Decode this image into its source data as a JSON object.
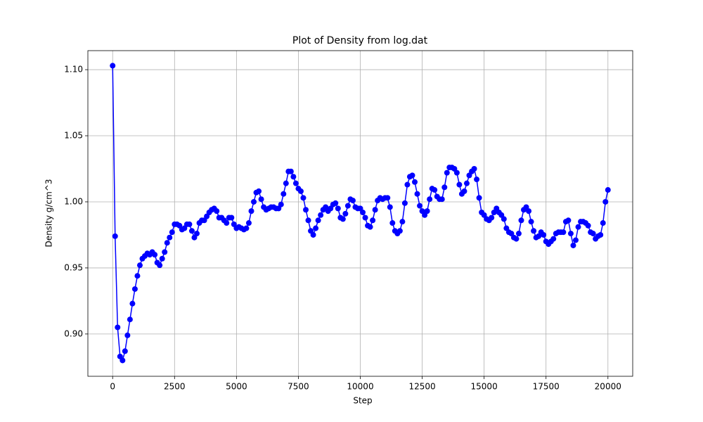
{
  "chart_data": {
    "type": "line",
    "title": "Plot of Density from log.dat",
    "xlabel": "Step",
    "ylabel": "Density g/cm^3",
    "x": [
      0,
      100,
      200,
      300,
      400,
      500,
      600,
      700,
      800,
      900,
      1000,
      1100,
      1200,
      1300,
      1400,
      1500,
      1600,
      1700,
      1800,
      1900,
      2000,
      2100,
      2200,
      2300,
      2400,
      2500,
      2600,
      2700,
      2800,
      2900,
      3000,
      3100,
      3200,
      3300,
      3400,
      3500,
      3600,
      3700,
      3800,
      3900,
      4000,
      4100,
      4200,
      4300,
      4400,
      4500,
      4600,
      4700,
      4800,
      4900,
      5000,
      5100,
      5200,
      5300,
      5400,
      5500,
      5600,
      5700,
      5800,
      5900,
      6000,
      6100,
      6200,
      6300,
      6400,
      6500,
      6600,
      6700,
      6800,
      6900,
      7000,
      7100,
      7200,
      7300,
      7400,
      7500,
      7600,
      7700,
      7800,
      7900,
      8000,
      8100,
      8200,
      8300,
      8400,
      8500,
      8600,
      8700,
      8800,
      8900,
      9000,
      9100,
      9200,
      9300,
      9400,
      9500,
      9600,
      9700,
      9800,
      9900,
      10000,
      10100,
      10200,
      10300,
      10400,
      10500,
      10600,
      10700,
      10800,
      10900,
      11000,
      11100,
      11200,
      11300,
      11400,
      11500,
      11600,
      11700,
      11800,
      11900,
      12000,
      12100,
      12200,
      12300,
      12400,
      12500,
      12600,
      12700,
      12800,
      12900,
      13000,
      13100,
      13200,
      13300,
      13400,
      13500,
      13600,
      13700,
      13800,
      13900,
      14000,
      14100,
      14200,
      14300,
      14400,
      14500,
      14600,
      14700,
      14800,
      14900,
      15000,
      15100,
      15200,
      15300,
      15400,
      15500,
      15600,
      15700,
      15800,
      15900,
      16000,
      16100,
      16200,
      16300,
      16400,
      16500,
      16600,
      16700,
      16800,
      16900,
      17000,
      17100,
      17200,
      17300,
      17400,
      17500,
      17600,
      17700,
      17800,
      17900,
      18000,
      18100,
      18200,
      18300,
      18400,
      18500,
      18600,
      18700,
      18800,
      18900,
      19000,
      19100,
      19200,
      19300,
      19400,
      19500,
      19600,
      19700,
      19800,
      19900,
      20000
    ],
    "series": [
      {
        "color": "#0000ff",
        "values": [
          1.103,
          0.974,
          0.905,
          0.883,
          0.88,
          0.887,
          0.899,
          0.911,
          0.923,
          0.934,
          0.944,
          0.952,
          0.957,
          0.959,
          0.961,
          0.96,
          0.962,
          0.96,
          0.954,
          0.952,
          0.957,
          0.962,
          0.969,
          0.973,
          0.977,
          0.983,
          0.983,
          0.982,
          0.979,
          0.98,
          0.983,
          0.983,
          0.978,
          0.973,
          0.976,
          0.984,
          0.986,
          0.986,
          0.989,
          0.992,
          0.994,
          0.995,
          0.993,
          0.988,
          0.988,
          0.986,
          0.984,
          0.988,
          0.988,
          0.983,
          0.98,
          0.981,
          0.98,
          0.979,
          0.98,
          0.984,
          0.993,
          1.0,
          1.007,
          1.008,
          1.002,
          0.996,
          0.994,
          0.995,
          0.996,
          0.996,
          0.995,
          0.995,
          0.998,
          1.006,
          1.014,
          1.023,
          1.023,
          1.019,
          1.014,
          1.01,
          1.008,
          1.003,
          0.994,
          0.986,
          0.978,
          0.975,
          0.98,
          0.986,
          0.99,
          0.994,
          0.996,
          0.993,
          0.995,
          0.998,
          0.999,
          0.995,
          0.988,
          0.987,
          0.991,
          0.997,
          1.002,
          1.001,
          0.996,
          0.995,
          0.995,
          0.992,
          0.988,
          0.982,
          0.981,
          0.986,
          0.994,
          1.001,
          1.003,
          1.002,
          1.003,
          1.003,
          0.996,
          0.984,
          0.978,
          0.976,
          0.978,
          0.985,
          0.999,
          1.013,
          1.019,
          1.02,
          1.015,
          1.006,
          0.997,
          0.993,
          0.99,
          0.993,
          1.002,
          1.01,
          1.009,
          1.004,
          1.002,
          1.002,
          1.011,
          1.022,
          1.026,
          1.026,
          1.025,
          1.022,
          1.013,
          1.006,
          1.008,
          1.014,
          1.02,
          1.023,
          1.025,
          1.017,
          1.003,
          0.992,
          0.99,
          0.987,
          0.986,
          0.988,
          0.992,
          0.995,
          0.992,
          0.99,
          0.987,
          0.98,
          0.977,
          0.976,
          0.973,
          0.972,
          0.976,
          0.986,
          0.994,
          0.996,
          0.993,
          0.985,
          0.978,
          0.973,
          0.974,
          0.977,
          0.975,
          0.97,
          0.968,
          0.97,
          0.972,
          0.976,
          0.977,
          0.977,
          0.977,
          0.985,
          0.986,
          0.976,
          0.967,
          0.971,
          0.981,
          0.985,
          0.985,
          0.984,
          0.982,
          0.977,
          0.976,
          0.972,
          0.974,
          0.975,
          0.984,
          1.0,
          1.009
        ]
      }
    ],
    "xlim": [
      -1000,
      21000
    ],
    "ylim": [
      0.868,
      1.1144
    ],
    "xticks": [
      0,
      2500,
      5000,
      7500,
      10000,
      12500,
      15000,
      17500,
      20000
    ],
    "yticks": [
      {
        "value": 0.9,
        "label": "0.90"
      },
      {
        "value": 0.95,
        "label": "0.95"
      },
      {
        "value": 1.0,
        "label": "1.00"
      },
      {
        "value": 1.05,
        "label": "1.05"
      },
      {
        "value": 1.1,
        "label": "1.10"
      }
    ],
    "grid": true
  }
}
